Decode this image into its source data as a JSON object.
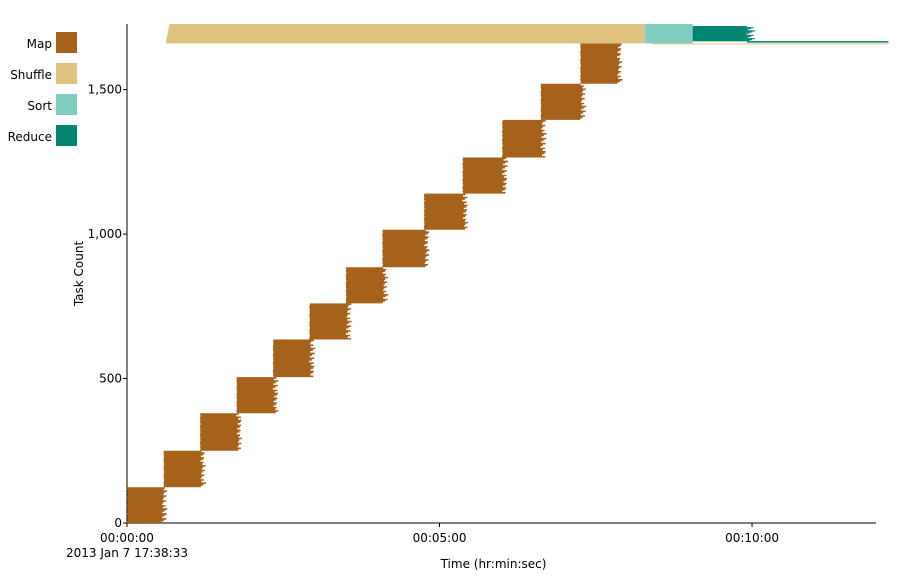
{
  "chart_data": {
    "type": "area",
    "xlabel": "Time (hr:min:sec)",
    "ylabel": "Task Count",
    "x_unit": "seconds",
    "xlim": [
      0,
      719
    ],
    "ylim": [
      0,
      1727
    ],
    "x_ticks": [
      {
        "value": 0,
        "label": "00:00:00"
      },
      {
        "value": 300,
        "label": "00:05:00"
      },
      {
        "value": 600,
        "label": "00:10:00"
      }
    ],
    "x_subtitle": "2013 Jan 7 17:38:33",
    "y_ticks": [
      {
        "value": 0,
        "label": "0"
      },
      {
        "value": 500,
        "label": "500"
      },
      {
        "value": 1000,
        "label": "1,000"
      },
      {
        "value": 1500,
        "label": "1,500"
      }
    ],
    "grid": false,
    "legend_placement": "top-left",
    "series": [
      {
        "name": "Map",
        "color": "#A6611A",
        "waves": [
          {
            "y0": 0,
            "y1": 124,
            "start": 0,
            "end": 33
          },
          {
            "y0": 124,
            "y1": 250,
            "start": 35,
            "end": 70
          },
          {
            "y0": 250,
            "y1": 380,
            "start": 70,
            "end": 105
          },
          {
            "y0": 380,
            "y1": 505,
            "start": 105,
            "end": 140
          },
          {
            "y0": 505,
            "y1": 635,
            "start": 140,
            "end": 175
          },
          {
            "y0": 635,
            "y1": 760,
            "start": 175,
            "end": 210
          },
          {
            "y0": 760,
            "y1": 885,
            "start": 210,
            "end": 245
          },
          {
            "y0": 885,
            "y1": 1015,
            "start": 245,
            "end": 285
          },
          {
            "y0": 1015,
            "y1": 1140,
            "start": 285,
            "end": 322
          },
          {
            "y0": 1140,
            "y1": 1265,
            "start": 322,
            "end": 360
          },
          {
            "y0": 1265,
            "y1": 1395,
            "start": 360,
            "end": 397
          },
          {
            "y0": 1395,
            "y1": 1520,
            "start": 397,
            "end": 435
          },
          {
            "y0": 1520,
            "y1": 1660,
            "start": 435,
            "end": 470
          }
        ]
      },
      {
        "name": "Shuffle",
        "color": "#DFC27D",
        "y_range": [
          1660,
          1727
        ],
        "start": 37,
        "end": 497
      },
      {
        "name": "Sort",
        "color": "#80CDC1",
        "y_range": [
          1660,
          1727
        ],
        "start": 497,
        "end": 543
      },
      {
        "name": "Reduce",
        "color": "#018571",
        "y_range": [
          1660,
          1727
        ],
        "start": 543,
        "end": 595,
        "tail_end": 731
      }
    ]
  }
}
